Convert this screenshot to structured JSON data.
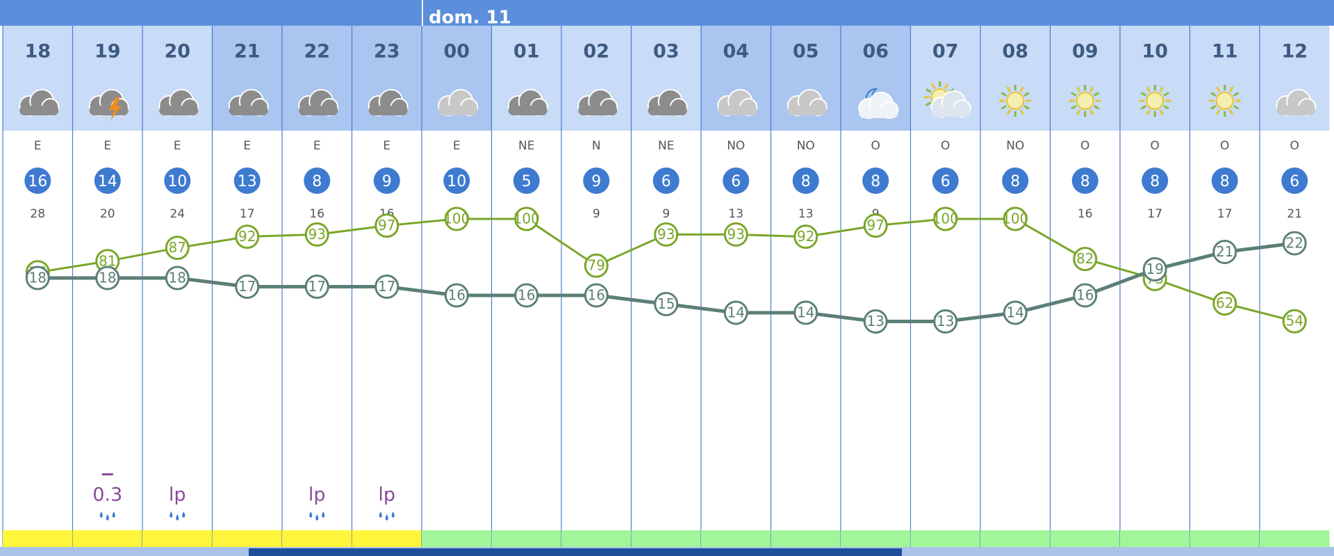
{
  "day_label": "dom. 11",
  "hours": [
    "18",
    "19",
    "20",
    "21",
    "22",
    "23",
    "00",
    "01",
    "02",
    "03",
    "04",
    "05",
    "06",
    "07",
    "08",
    "09",
    "10",
    "11",
    "12"
  ],
  "sky": [
    "cloudy",
    "storm",
    "cloudy",
    "cloudy",
    "cloudy",
    "cloudy",
    "cloudy",
    "cloudy",
    "cloudy",
    "cloudy",
    "cloudy",
    "cloudy",
    "night-cloud",
    "sun-cloud",
    "sunny",
    "sunny",
    "sunny",
    "sunny",
    "cloudy"
  ],
  "wind_dir": [
    "E",
    "E",
    "E",
    "E",
    "E",
    "E",
    "E",
    "NE",
    "N",
    "NE",
    "NO",
    "NO",
    "O",
    "O",
    "NO",
    "O",
    "O",
    "O",
    "O"
  ],
  "wind_speed": [
    16,
    14,
    10,
    13,
    8,
    9,
    10,
    5,
    9,
    6,
    6,
    8,
    8,
    6,
    8,
    8,
    8,
    8,
    6
  ],
  "gust": [
    28,
    20,
    24,
    17,
    16,
    16,
    null,
    null,
    9,
    9,
    13,
    13,
    9,
    null,
    null,
    16,
    17,
    17,
    21
  ],
  "humidity": [
    76,
    81,
    87,
    92,
    93,
    97,
    100,
    100,
    79,
    93,
    93,
    92,
    97,
    100,
    100,
    82,
    73,
    62,
    54
  ],
  "temperature": [
    18,
    18,
    18,
    17,
    17,
    17,
    16,
    16,
    16,
    15,
    14,
    14,
    13,
    13,
    14,
    16,
    19,
    21,
    22
  ],
  "precip": [
    null,
    0.3,
    "lp",
    null,
    "lp",
    "lp",
    null,
    null,
    null,
    null,
    null,
    null,
    null,
    null,
    null,
    null,
    null,
    null,
    null
  ],
  "alert": [
    "yellow",
    "yellow",
    "yellow",
    "yellow",
    "yellow",
    "yellow",
    "green",
    "green",
    "green",
    "green",
    "green",
    "green",
    "green",
    "green",
    "green",
    "green",
    "green",
    "green",
    "green"
  ]
}
